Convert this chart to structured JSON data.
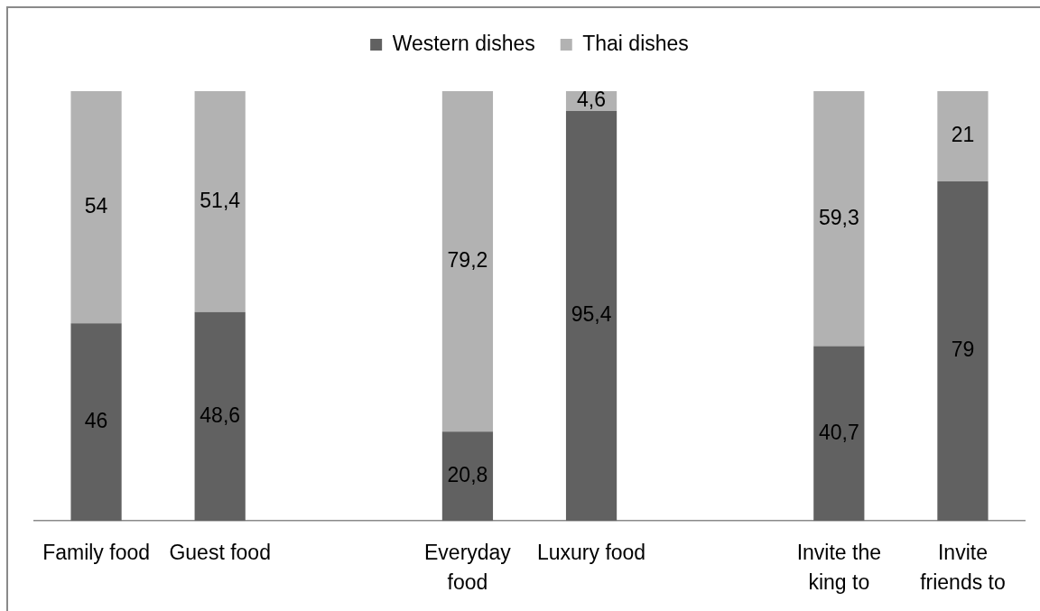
{
  "chart_data": {
    "type": "bar",
    "stacked": true,
    "categories": [
      "Family food",
      "Guest food",
      null,
      "Everyday food",
      "Luxury food",
      null,
      "Invite the king to",
      "Invite friends to"
    ],
    "series": [
      {
        "name": "Western dishes",
        "color": "#616161",
        "values": [
          46,
          48.6,
          null,
          20.8,
          95.4,
          null,
          40.7,
          79
        ],
        "value_labels": [
          "46",
          "48,6",
          null,
          "20,8",
          "95,4",
          null,
          "40,7",
          "79"
        ]
      },
      {
        "name": "Thai dishes",
        "color": "#b2b2b2",
        "values": [
          54,
          51.4,
          null,
          79.2,
          4.6,
          null,
          59.3,
          21
        ],
        "value_labels": [
          "54",
          "51,4",
          null,
          "79,2",
          "4,6",
          null,
          "59,3",
          "21"
        ]
      }
    ],
    "ylim": [
      0,
      100
    ],
    "legend": "top",
    "tick_labels": "x"
  }
}
